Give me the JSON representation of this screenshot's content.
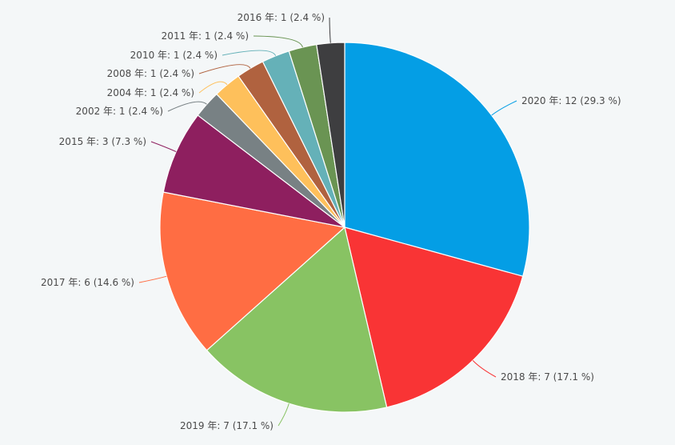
{
  "chart_data": {
    "type": "pie",
    "title": "",
    "slices": [
      {
        "label": "2020 年: 12 (29.3 %)",
        "value": 12,
        "color": "#049ee5"
      },
      {
        "label": "2018 年: 7 (17.1 %)",
        "value": 7,
        "color": "#f93435"
      },
      {
        "label": "2019 年: 7 (17.1 %)",
        "value": 7,
        "color": "#88c363"
      },
      {
        "label": "2017 年: 6 (14.6 %)",
        "value": 6,
        "color": "#ff6d43"
      },
      {
        "label": "2015 年: 3 (7.3 %)",
        "value": 3,
        "color": "#8e1f5f"
      },
      {
        "label": "2002 年: 1 (2.4 %)",
        "value": 1,
        "color": "#788184"
      },
      {
        "label": "2004 年: 1 (2.4 %)",
        "value": 1,
        "color": "#fec05b"
      },
      {
        "label": "2008 年: 1 (2.4 %)",
        "value": 1,
        "color": "#b0623f"
      },
      {
        "label": "2010 年: 1 (2.4 %)",
        "value": 1,
        "color": "#65b1b8"
      },
      {
        "label": "2011 年: 1 (2.4 %)",
        "value": 1,
        "color": "#6a9453"
      },
      {
        "label": "2016 年: 1 (2.4 %)",
        "value": 1,
        "color": "#3e3e40"
      }
    ]
  }
}
